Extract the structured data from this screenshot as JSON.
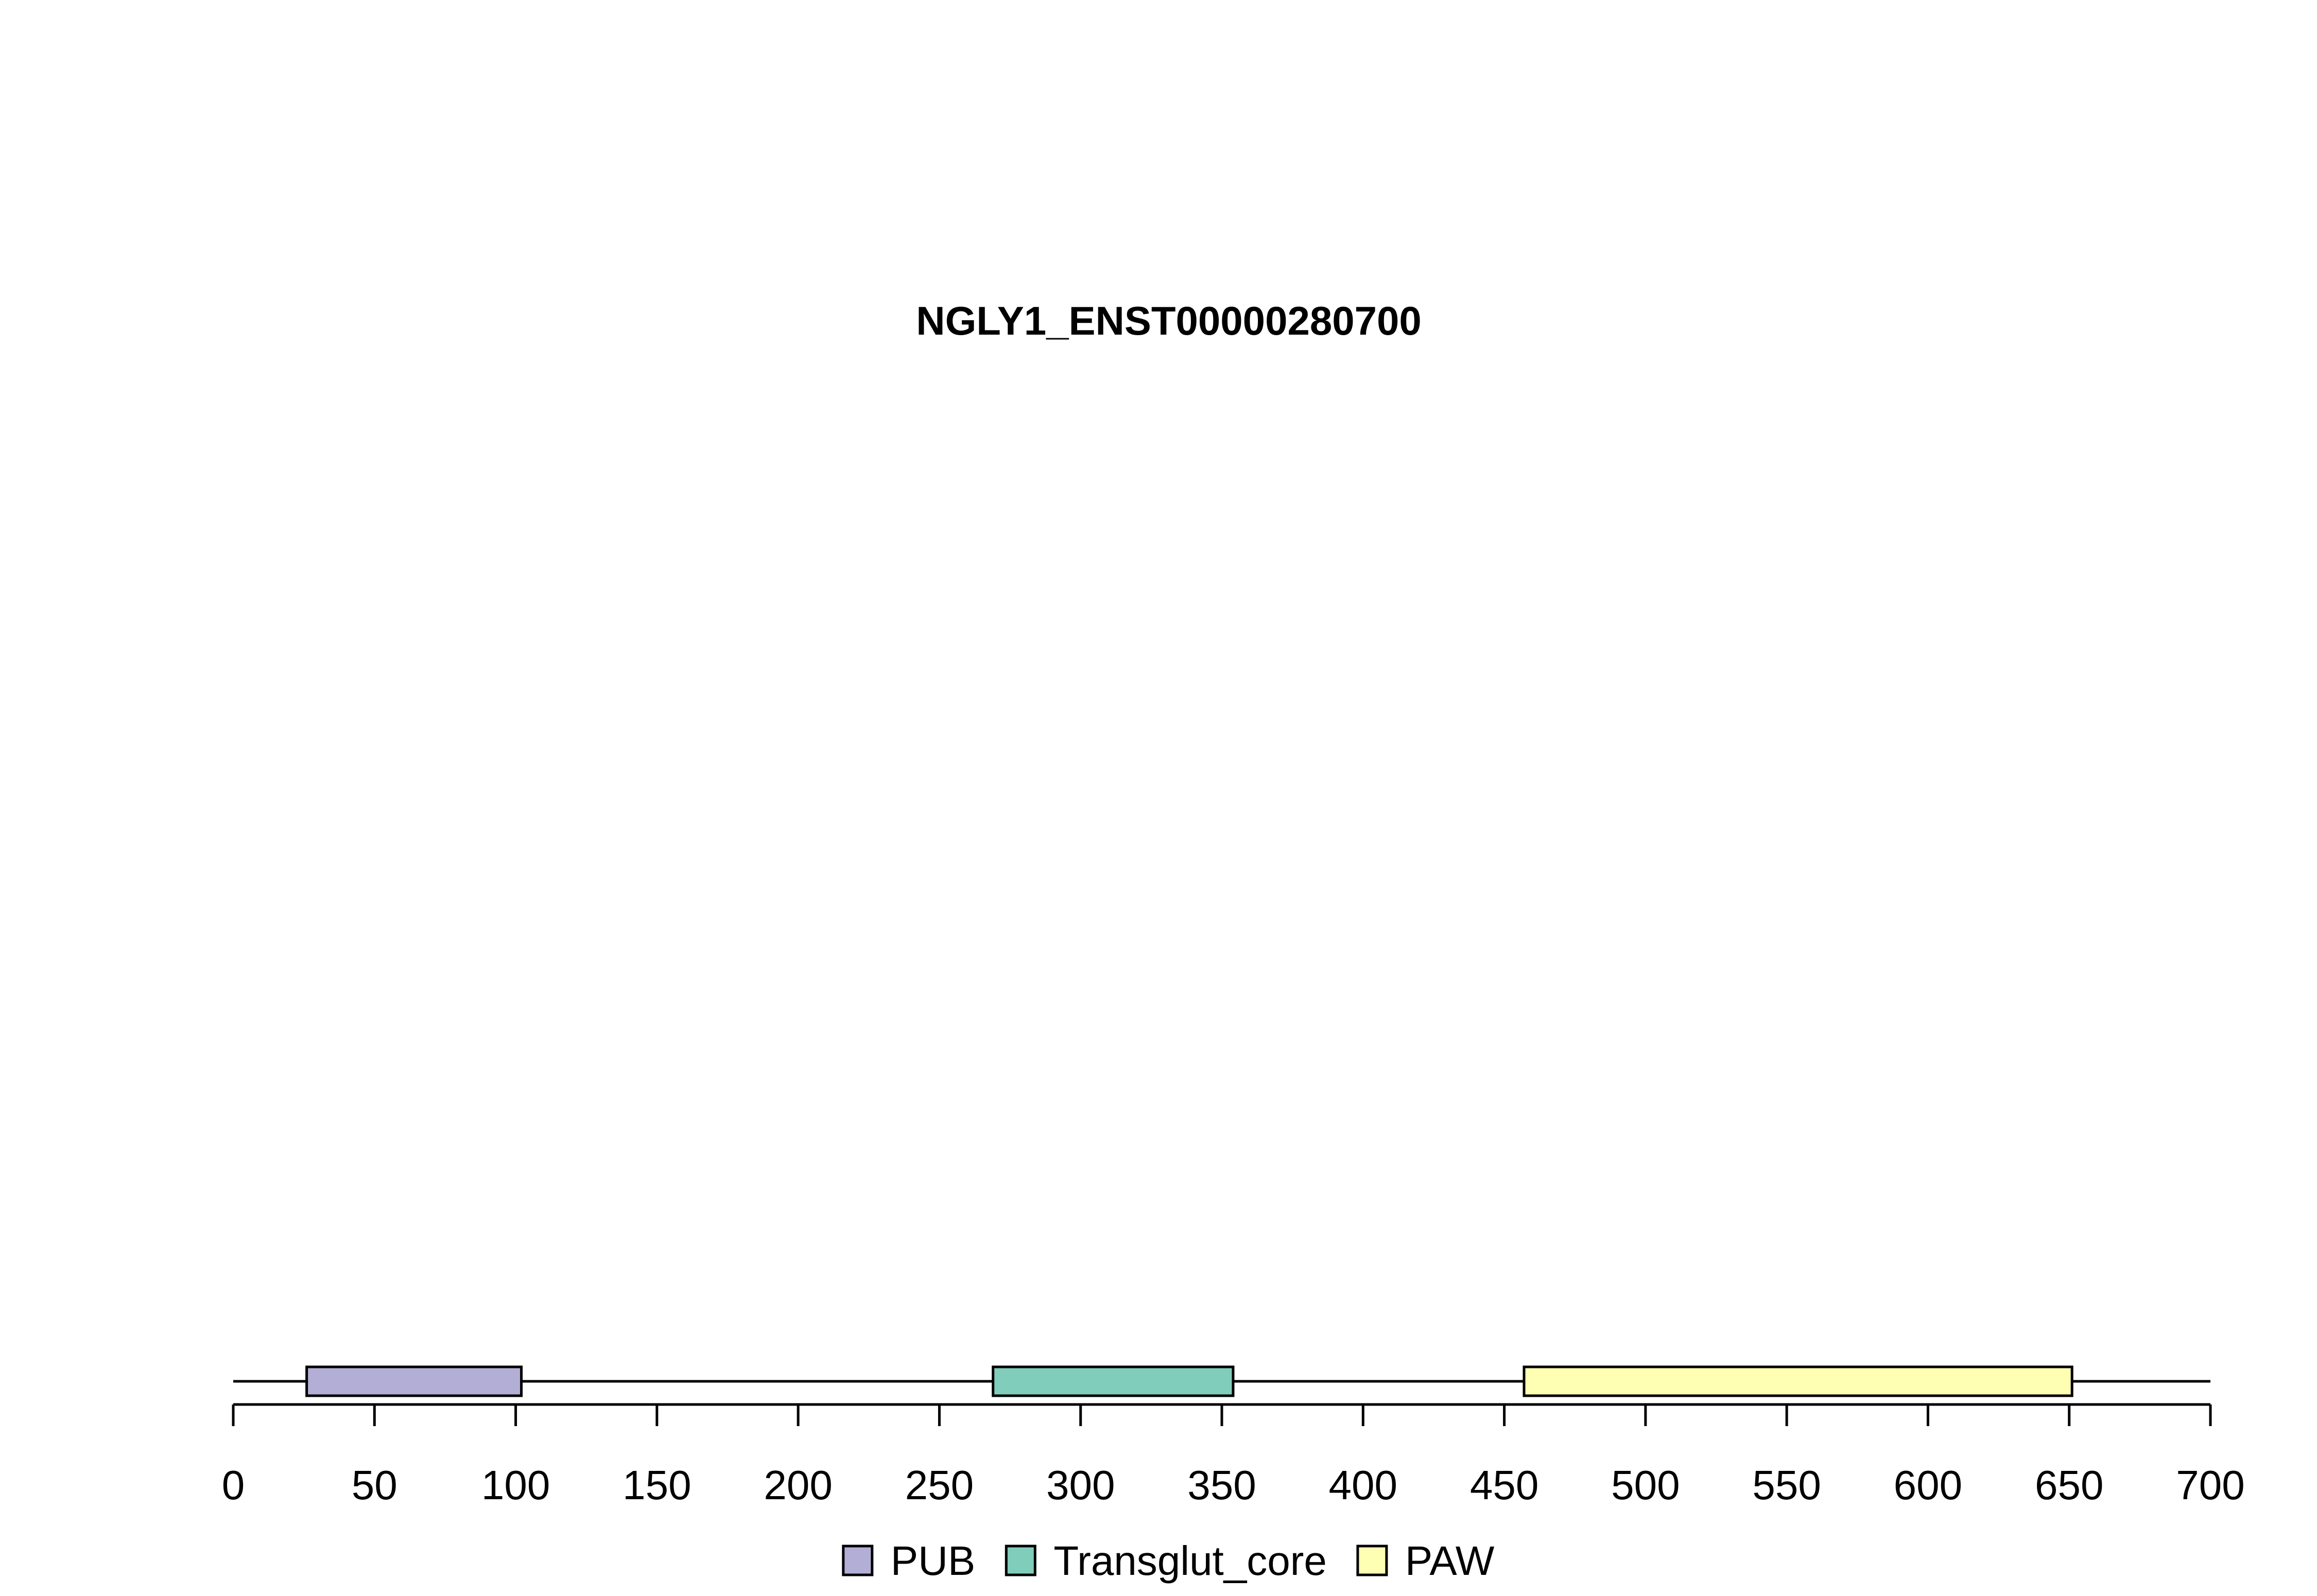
{
  "title": "NGLY1_ENST00000280700",
  "protein": {
    "length": 700
  },
  "axis": {
    "min": 0,
    "max": 700,
    "ticks": [
      0,
      50,
      100,
      150,
      200,
      250,
      300,
      350,
      400,
      450,
      500,
      550,
      600,
      650,
      700
    ],
    "tick_labels": [
      "0",
      "50",
      "100",
      "150",
      "200",
      "250",
      "300",
      "350",
      "400",
      "450",
      "500",
      "550",
      "600",
      "650",
      "700"
    ]
  },
  "domains": [
    {
      "name": "PUB",
      "start": 26,
      "end": 102,
      "color": "#B3AED6"
    },
    {
      "name": "Transglut_core",
      "start": 269,
      "end": 354,
      "color": "#80CDBB"
    },
    {
      "name": "PAW",
      "start": 457,
      "end": 651,
      "color": "#FFFFB3"
    }
  ],
  "legend": [
    {
      "label": "PUB",
      "color": "#B3AED6"
    },
    {
      "label": "Transglut_core",
      "color": "#80CDBB"
    },
    {
      "label": "PAW",
      "color": "#FFFFB3"
    }
  ]
}
